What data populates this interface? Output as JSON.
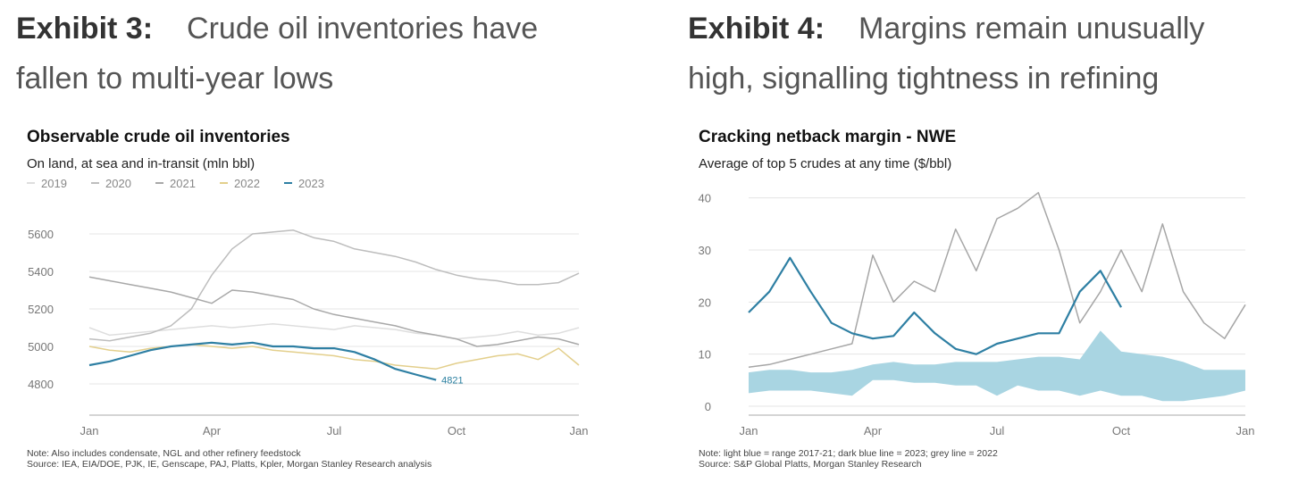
{
  "exhibit3": {
    "num": "Exhibit 3:",
    "text": "Crude oil inventories have fallen to multi-year lows"
  },
  "exhibit4": {
    "num": "Exhibit 4:",
    "text": "Margins remain unusually high, signalling tightness in refining"
  },
  "chart_data": [
    {
      "type": "line",
      "title": "Observable crude oil inventories",
      "subtitle": "On land, at sea and in-transit (mln bbl)",
      "xlabel": "",
      "ylabel": "",
      "x_ticks": [
        "Jan",
        "Apr",
        "Jul",
        "Oct",
        "Jan"
      ],
      "y_ticks": [
        5600,
        5400,
        5200,
        5000,
        4800
      ],
      "ylim": [
        4700,
        5700
      ],
      "xlim_months": [
        0,
        12
      ],
      "grid": true,
      "legend_position": "top-left",
      "end_label": "4821",
      "note": "Note: Also includes condensate, NGL and other refinery feedstock",
      "source": "Source: IEA, EIA/DOE, PJK, IE, Genscape, PAJ, Platts, Kpler, Morgan Stanley Research analysis",
      "series": [
        {
          "name": "2019",
          "color": "#dedede",
          "x": [
            0,
            0.5,
            1,
            1.5,
            2,
            2.5,
            3,
            3.5,
            4,
            4.5,
            5,
            5.5,
            6,
            6.5,
            7,
            7.5,
            8,
            8.5,
            9,
            9.5,
            10,
            10.5,
            11,
            11.5,
            12
          ],
          "y": [
            5100,
            5060,
            5070,
            5080,
            5090,
            5100,
            5110,
            5100,
            5110,
            5120,
            5110,
            5100,
            5090,
            5110,
            5100,
            5090,
            5070,
            5060,
            5040,
            5050,
            5060,
            5080,
            5060,
            5070,
            5100
          ]
        },
        {
          "name": "2020",
          "color": "#bdbdbd",
          "x": [
            0,
            0.5,
            1,
            1.5,
            2,
            2.5,
            3,
            3.5,
            4,
            4.5,
            5,
            5.5,
            6,
            6.5,
            7,
            7.5,
            8,
            8.5,
            9,
            9.5,
            10,
            10.5,
            11,
            11.5,
            12
          ],
          "y": [
            5040,
            5030,
            5050,
            5070,
            5110,
            5200,
            5380,
            5520,
            5600,
            5610,
            5620,
            5580,
            5560,
            5520,
            5500,
            5480,
            5450,
            5410,
            5380,
            5360,
            5350,
            5330,
            5330,
            5340,
            5390
          ]
        },
        {
          "name": "2021",
          "color": "#a8a8a8",
          "x": [
            0,
            0.5,
            1,
            1.5,
            2,
            2.5,
            3,
            3.5,
            4,
            4.5,
            5,
            5.5,
            6,
            6.5,
            7,
            7.5,
            8,
            8.5,
            9,
            9.5,
            10,
            10.5,
            11,
            11.5,
            12
          ],
          "y": [
            5370,
            5350,
            5330,
            5310,
            5290,
            5260,
            5230,
            5300,
            5290,
            5270,
            5250,
            5200,
            5170,
            5150,
            5130,
            5110,
            5080,
            5060,
            5040,
            5000,
            5010,
            5030,
            5050,
            5040,
            5010
          ]
        },
        {
          "name": "2022",
          "color": "#e3cf8c",
          "x": [
            0,
            0.5,
            1,
            1.5,
            2,
            2.5,
            3,
            3.5,
            4,
            4.5,
            5,
            5.5,
            6,
            6.5,
            7,
            7.5,
            8,
            8.5,
            9,
            9.5,
            10,
            10.5,
            11,
            11.5,
            12
          ],
          "y": [
            5000,
            4980,
            4970,
            4990,
            5000,
            5010,
            5000,
            4990,
            5000,
            4980,
            4970,
            4960,
            4950,
            4930,
            4920,
            4900,
            4890,
            4880,
            4910,
            4930,
            4950,
            4960,
            4930,
            4990,
            4900
          ]
        },
        {
          "name": "2023",
          "color": "#2e7fa3",
          "x": [
            0,
            0.5,
            1,
            1.5,
            2,
            2.5,
            3,
            3.5,
            4,
            4.5,
            5,
            5.5,
            6,
            6.5,
            7,
            7.5,
            8,
            8.5
          ],
          "y": [
            4900,
            4920,
            4950,
            4980,
            5000,
            5010,
            5020,
            5010,
            5020,
            5000,
            5000,
            4990,
            4990,
            4970,
            4930,
            4880,
            4850,
            4821
          ]
        }
      ]
    },
    {
      "type": "area",
      "title": "Cracking netback margin - NWE",
      "subtitle": "Average of top 5 crudes at any time ($/bbl)",
      "xlabel": "",
      "ylabel": "",
      "x_ticks": [
        "Jan",
        "Apr",
        "Jul",
        "Oct",
        "Jan"
      ],
      "y_ticks": [
        40,
        30,
        20,
        10,
        0
      ],
      "ylim": [
        0,
        42
      ],
      "xlim_months": [
        0,
        12
      ],
      "grid": true,
      "note": "Note: light blue = range 2017-21; dark blue line = 2023; grey line = 2022",
      "source": "Source: S&P Global Platts, Morgan Stanley Research",
      "range_band": {
        "name": "range 2017-21",
        "color": "#a9d5e2",
        "x": [
          0,
          0.5,
          1,
          1.5,
          2,
          2.5,
          3,
          3.5,
          4,
          4.5,
          5,
          5.5,
          6,
          6.5,
          7,
          7.5,
          8,
          8.5,
          9,
          9.5,
          10,
          10.5,
          11,
          11.5,
          12
        ],
        "low": [
          2.5,
          3,
          3,
          3,
          2.5,
          2,
          5,
          5,
          4.5,
          4.5,
          4,
          4,
          2,
          4,
          3,
          3,
          2,
          3,
          2,
          2,
          1,
          1,
          1.5,
          2,
          3
        ],
        "high": [
          6.5,
          7,
          7,
          6.5,
          6.5,
          7,
          8,
          8.5,
          8,
          8,
          8.5,
          8.5,
          8.5,
          9,
          9.5,
          9.5,
          9,
          14.5,
          10.5,
          10,
          9.5,
          8.5,
          7,
          7,
          7
        ]
      },
      "series": [
        {
          "name": "2022",
          "color": "#a6a6a6",
          "x": [
            0,
            0.5,
            1,
            1.5,
            2,
            2.5,
            3,
            3.5,
            4,
            4.5,
            5,
            5.5,
            6,
            6.5,
            7,
            7.5,
            8,
            8.5,
            9,
            9.5,
            10,
            10.5,
            11,
            11.5,
            12
          ],
          "y": [
            7.5,
            8,
            9,
            10,
            11,
            12,
            29,
            20,
            24,
            22,
            34,
            26,
            36,
            38,
            41,
            30,
            16,
            22,
            30,
            22,
            35,
            22,
            16,
            13,
            19.5
          ]
        },
        {
          "name": "2023",
          "color": "#2e7fa3",
          "x": [
            0,
            0.5,
            1,
            1.5,
            2,
            2.5,
            3,
            3.5,
            4,
            4.5,
            5,
            5.5,
            6,
            6.5,
            7,
            7.5,
            8,
            8.5,
            9
          ],
          "y": [
            18,
            22,
            28.5,
            22,
            16,
            14,
            13,
            13.5,
            18,
            14,
            11,
            10,
            12,
            13,
            14,
            14,
            22,
            26,
            19
          ]
        }
      ]
    }
  ]
}
